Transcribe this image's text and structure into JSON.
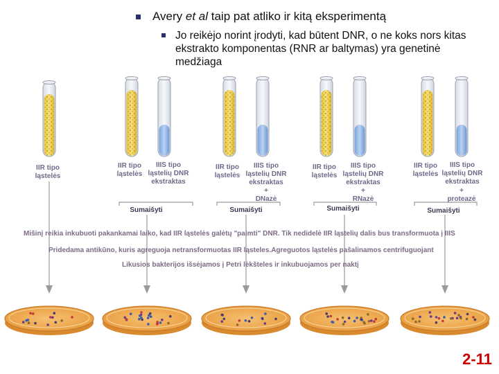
{
  "title": {
    "prefix": "Avery ",
    "italic": "et al",
    "suffix": " taip pat atliko ir kitą eksperimentą"
  },
  "subtitle": "Jo reikėjo norint įrodyti, kad būtent DNR, o ne koks nors kitas ekstrakto komponentas (RNR ar baltymas) yra genetinė medžiaga",
  "columns": [
    {
      "cell_label": "IIR tipo\nląstelės"
    },
    {
      "cell_label": "IIR tipo\nląstelės",
      "extract_label": "IIIS tipo\nląstelių DNR\nekstraktas",
      "mix": "Sumaišyti"
    },
    {
      "cell_label": "IIR tipo\nląstelės",
      "extract_label": "IIIS tipo\nląstelių DNR\nekstraktas",
      "enzyme": "+\nDNazė",
      "mix": "Sumaišyti"
    },
    {
      "cell_label": "IIR tipo\nląstelės",
      "extract_label": "IIIS tipo\nląstelių DNR\nekstraktas",
      "enzyme": "+\nRNazė",
      "mix": "Sumaišyti"
    },
    {
      "cell_label": "IIR tipo\nląstelės",
      "extract_label": "IIIS tipo\nląstelių DNR\nekstraktas",
      "enzyme": "+\nproteazė",
      "mix": "Sumaišyti"
    }
  ],
  "steps": [
    "Mišinį reikia inkubuoti pakankamai laiko, kad IIR ląstelės galėtų \"paimti\" DNR. Tik nedidelė IIR ląstelių dalis bus transformuota į IIIS",
    "Pridedama antikūno, kuris agreguoja netransformuotas IIR ląsteles.Agreguotos ląstelės pašalinamos centrifuguojant",
    "Likusios bakterijos išsėjamos į Petri lėkšteles ir inkubuojamos per naktį"
  ],
  "slide_number": "2-11",
  "colors": {
    "bullet": "#2b2f6e",
    "yellow_culture": "#f1d65a",
    "blue_extract": "#8fb4e6",
    "petri": "#f0a84a",
    "slide_number": "#cc0000"
  }
}
